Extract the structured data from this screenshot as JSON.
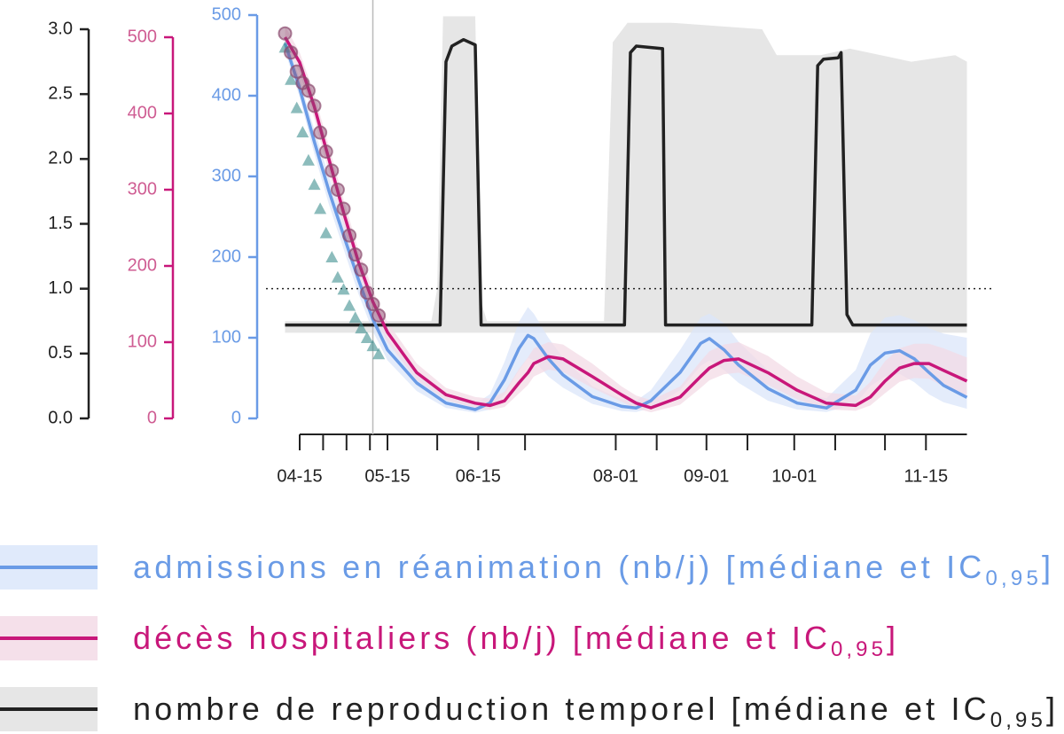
{
  "chart_data": {
    "type": "line",
    "xlim": [
      "04-10",
      "11-29"
    ],
    "xticks": [
      "04-15",
      "05-15",
      "06-15",
      "08-01",
      "09-01",
      "10-01",
      "11-15"
    ],
    "xminor_ticks": [
      "04-23",
      "05-01",
      "05-09",
      "06-01",
      "07-01",
      "08-15",
      "09-15",
      "10-15",
      "11-01"
    ],
    "ylim": [
      0,
      500
    ],
    "yticks": [
      0,
      100,
      200,
      300,
      400,
      500
    ],
    "y_color": "#6a9be6",
    "y2lim": [
      0,
      500
    ],
    "y2ticks": [
      0,
      100,
      200,
      300,
      400,
      500
    ],
    "y2_color": "#c8177a",
    "y2_label_color": "#cf5d93",
    "y3lim": [
      0,
      3
    ],
    "y3ticks": [
      {
        "value": 0,
        "label": "0.0"
      },
      0.5,
      {
        "value": 1,
        "label": "1.0"
      },
      1.5,
      {
        "value": 2,
        "label": "2.0"
      },
      2.5,
      {
        "value": 3,
        "label": "3.0"
      }
    ],
    "y3_color": "#222222",
    "vline": "05-10",
    "hline": {
      "axis": "y3",
      "value": 1
    },
    "series": [
      {
        "name": "admissions en réanimation (nb/j) [médiane et IC",
        "name_sub": "0,95",
        "name_tail": "]",
        "color": "#6a9be6",
        "band_color": "#dbe6fa",
        "axis": "y",
        "x": [
          "04-10",
          "04-15",
          "04-20",
          "04-25",
          "04-30",
          "05-05",
          "05-10",
          "05-15",
          "05-25",
          "06-04",
          "06-14",
          "06-19",
          "06-24",
          "06-29",
          "07-02",
          "07-04",
          "07-09",
          "07-14",
          "07-24",
          "08-03",
          "08-08",
          "08-13",
          "08-23",
          "08-30",
          "09-02",
          "09-07",
          "09-12",
          "09-22",
          "10-02",
          "10-12",
          "10-22",
          "10-27",
          "11-01",
          "11-06",
          "11-11",
          "11-16",
          "11-21",
          "11-29"
        ],
        "values": [
          465,
          409,
          343,
          282,
          227,
          173,
          123,
          85,
          44,
          19,
          11,
          19,
          48,
          87,
          103,
          99,
          74,
          54,
          27,
          15,
          13,
          22,
          57,
          93,
          99,
          85,
          66,
          37,
          19,
          13,
          35,
          66,
          81,
          84,
          74,
          57,
          41,
          26
        ],
        "upper": [
          475,
          420,
          358,
          300,
          245,
          192,
          140,
          100,
          55,
          26,
          18,
          30,
          70,
          120,
          138,
          130,
          100,
          75,
          40,
          24,
          22,
          35,
          85,
          125,
          130,
          118,
          95,
          60,
          32,
          25,
          60,
          105,
          125,
          128,
          122,
          112,
          105,
          100
        ],
        "lower": [
          455,
          398,
          328,
          265,
          210,
          155,
          108,
          72,
          34,
          13,
          7,
          11,
          30,
          60,
          75,
          72,
          52,
          38,
          18,
          9,
          8,
          13,
          35,
          65,
          72,
          60,
          44,
          22,
          11,
          8,
          18,
          40,
          52,
          55,
          45,
          30,
          20,
          12
        ]
      },
      {
        "name": "décès hospitaliers (nb/j) [médiane et IC",
        "name_sub": "0,95",
        "name_tail": "]",
        "color": "#c8177a",
        "band_color": "#f3dbe6",
        "axis": "y2",
        "x": [
          "04-10",
          "04-15",
          "04-20",
          "04-25",
          "04-30",
          "05-05",
          "05-10",
          "05-15",
          "05-25",
          "06-04",
          "06-14",
          "06-19",
          "06-24",
          "06-29",
          "07-02",
          "07-04",
          "07-09",
          "07-14",
          "07-24",
          "08-03",
          "08-08",
          "08-13",
          "08-23",
          "08-30",
          "09-02",
          "09-07",
          "09-12",
          "09-22",
          "10-02",
          "10-12",
          "10-22",
          "10-27",
          "11-01",
          "11-06",
          "11-11",
          "11-16",
          "11-21",
          "11-29"
        ],
        "values": [
          500,
          467,
          409,
          340,
          270,
          206,
          153,
          113,
          60,
          31,
          20,
          17,
          23,
          47,
          60,
          72,
          81,
          78,
          55,
          31,
          20,
          14,
          28,
          55,
          66,
          76,
          78,
          60,
          37,
          20,
          17,
          28,
          49,
          66,
          72,
          72,
          63,
          49
        ],
        "upper": [
          515,
          480,
          425,
          357,
          287,
          222,
          168,
          126,
          72,
          40,
          28,
          26,
          35,
          65,
          80,
          92,
          100,
          97,
          72,
          42,
          30,
          24,
          42,
          75,
          88,
          97,
          100,
          82,
          55,
          34,
          30,
          48,
          75,
          92,
          98,
          98,
          92,
          80
        ],
        "lower": [
          485,
          454,
          393,
          323,
          253,
          190,
          139,
          100,
          50,
          24,
          14,
          11,
          15,
          33,
          44,
          55,
          64,
          61,
          40,
          22,
          13,
          8,
          18,
          40,
          50,
          58,
          60,
          44,
          25,
          12,
          10,
          17,
          33,
          48,
          53,
          52,
          42,
          28
        ]
      },
      {
        "name": "nombre de reproduction temporel [médiane et IC",
        "name_sub": "0,95",
        "name_tail": "]",
        "color": "#222222",
        "band_color": "#e6e6e6",
        "axis": "y3",
        "x": [
          "04-10",
          "06-02",
          "06-04",
          "06-06",
          "06-10",
          "06-14",
          "06-16",
          "08-04",
          "08-06",
          "08-08",
          "08-17",
          "08-18",
          "10-07",
          "10-09",
          "10-11",
          "10-16",
          "10-17",
          "10-19",
          "10-21",
          "11-29"
        ],
        "values": [
          0.72,
          0.72,
          2.75,
          2.87,
          2.92,
          2.88,
          0.72,
          0.72,
          2.82,
          2.87,
          2.85,
          0.72,
          0.72,
          2.72,
          2.77,
          2.78,
          2.82,
          0.8,
          0.72,
          0.72
        ],
        "band": {
          "x": [
            "04-10",
            "05-30",
            "06-01",
            "06-03",
            "06-14",
            "06-16",
            "06-18",
            "07-28",
            "07-31",
            "08-05",
            "08-20",
            "09-20",
            "09-25",
            "10-10",
            "10-20",
            "11-10",
            "11-25",
            "11-29"
          ],
          "upper": [
            0.75,
            0.75,
            1.0,
            3.1,
            3.1,
            0.9,
            0.75,
            0.75,
            2.9,
            3.05,
            3.05,
            3.0,
            2.8,
            2.8,
            2.85,
            2.75,
            2.8,
            2.75
          ],
          "lower": [
            0.66,
            0.66,
            0.66,
            0.66,
            0.66,
            0.66,
            0.66,
            0.66,
            0.66,
            0.66,
            0.66,
            0.66,
            0.66,
            0.66,
            0.66,
            0.66,
            0.66,
            0.66
          ]
        }
      }
    ],
    "observations": [
      {
        "marker": "triangle",
        "color": "#3f8f8f",
        "axis": "y",
        "x": [
          "04-10",
          "04-12",
          "04-14",
          "04-16",
          "04-18",
          "04-20",
          "04-22",
          "04-24",
          "04-26",
          "04-28",
          "04-30",
          "05-02",
          "05-04",
          "05-06",
          "05-08",
          "05-10",
          "05-12"
        ],
        "values": [
          460,
          420,
          385,
          355,
          320,
          290,
          260,
          230,
          200,
          175,
          160,
          140,
          125,
          112,
          100,
          90,
          80
        ]
      },
      {
        "marker": "circle",
        "color": "#8a4a6e",
        "axis": "y2",
        "x": [
          "04-10",
          "04-12",
          "04-14",
          "04-16",
          "04-18",
          "04-20",
          "04-22",
          "04-24",
          "04-26",
          "04-28",
          "04-30",
          "05-02",
          "05-04",
          "05-06",
          "05-08",
          "05-10",
          "05-12"
        ],
        "values": [
          505,
          480,
          455,
          440,
          430,
          410,
          375,
          350,
          325,
          300,
          275,
          240,
          215,
          195,
          165,
          150,
          135
        ]
      }
    ]
  }
}
